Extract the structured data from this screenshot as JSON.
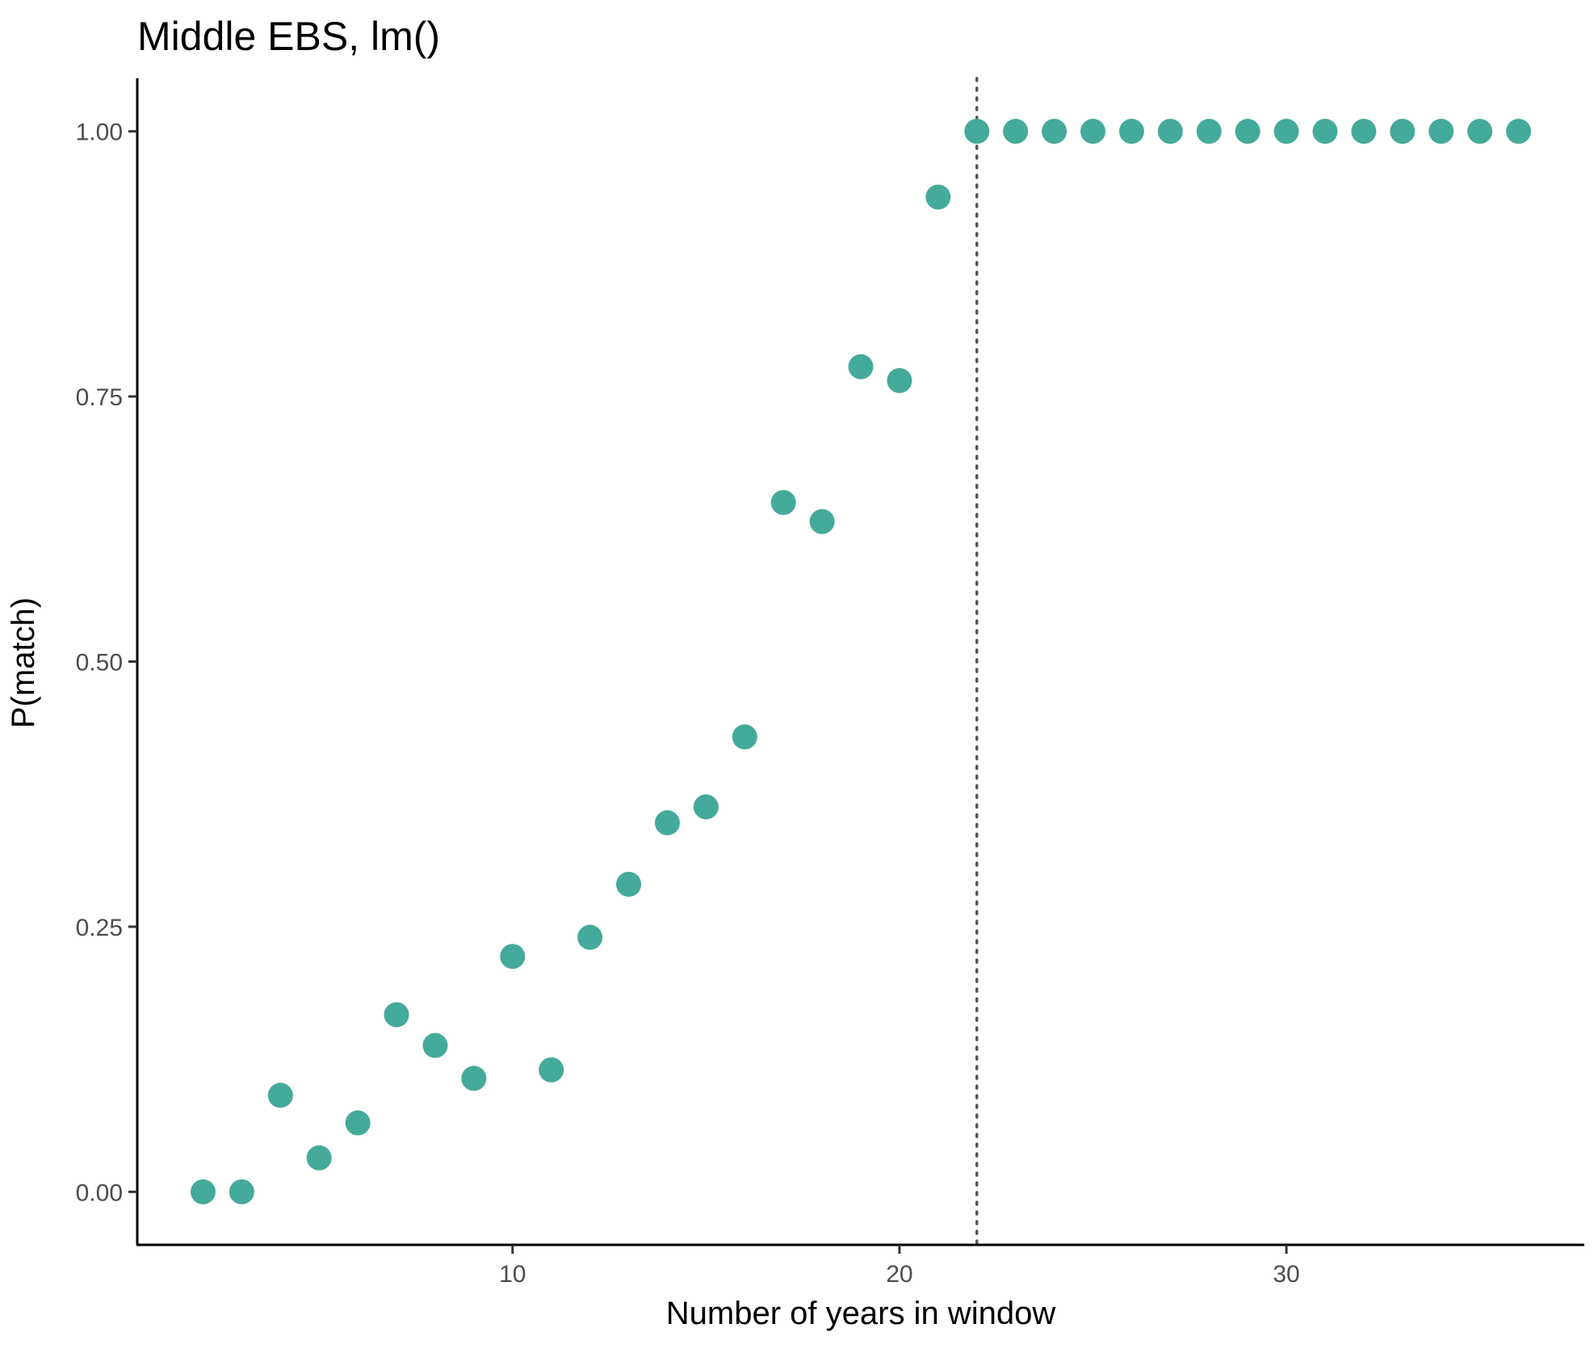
{
  "chart_data": {
    "type": "scatter",
    "title": "Middle EBS, lm()",
    "xlabel": "Number of years in window",
    "ylabel": "P(match)",
    "xlim": [
      0.3,
      37.7
    ],
    "ylim": [
      -0.05,
      1.05
    ],
    "x_ticks": [
      10,
      20,
      30
    ],
    "x_tick_labels": [
      "10",
      "20",
      "30"
    ],
    "y_ticks": [
      0,
      0.25,
      0.5,
      0.75,
      1
    ],
    "y_tick_labels": [
      "0.00",
      "0.25",
      "0.50",
      "0.75",
      "1.00"
    ],
    "grid": false,
    "legend": "none",
    "point_color": "#44AA99",
    "vline": {
      "x": 22,
      "style": "dotted",
      "color": "#555555"
    },
    "series": [
      {
        "x": [
          2,
          3,
          4,
          5,
          6,
          7,
          8,
          9,
          10,
          11,
          12,
          13,
          14,
          15,
          16,
          17,
          18,
          19,
          20,
          21,
          22,
          23,
          24,
          25,
          26,
          27,
          28,
          29,
          30,
          31,
          32,
          33,
          34,
          35,
          36
        ],
        "y": [
          0.0,
          0.0,
          0.091,
          0.032,
          0.065,
          0.167,
          0.138,
          0.107,
          0.222,
          0.115,
          0.24,
          0.29,
          0.348,
          0.363,
          0.429,
          0.65,
          0.632,
          0.778,
          0.765,
          0.938,
          1.0,
          1.0,
          1.0,
          1.0,
          1.0,
          1.0,
          1.0,
          1.0,
          1.0,
          1.0,
          1.0,
          1.0,
          1.0,
          1.0,
          1.0
        ]
      }
    ]
  }
}
